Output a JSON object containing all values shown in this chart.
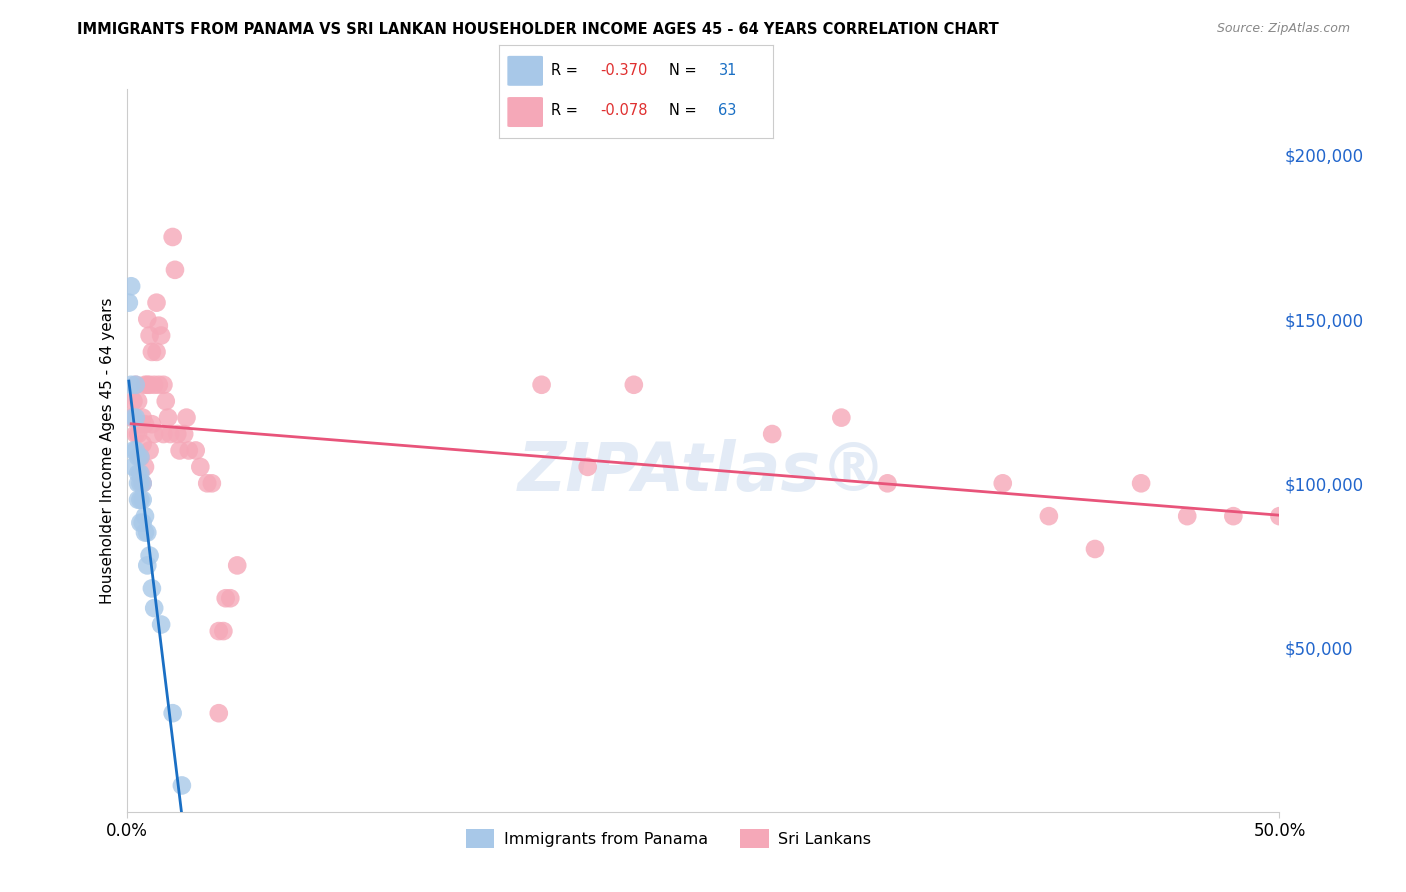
{
  "title": "IMMIGRANTS FROM PANAMA VS SRI LANKAN HOUSEHOLDER INCOME AGES 45 - 64 YEARS CORRELATION CHART",
  "source": "Source: ZipAtlas.com",
  "ylabel": "Householder Income Ages 45 - 64 years",
  "ylabel_right_ticks": [
    "$200,000",
    "$150,000",
    "$100,000",
    "$50,000"
  ],
  "ylabel_right_values": [
    200000,
    150000,
    100000,
    50000
  ],
  "xlim": [
    0.0,
    0.5
  ],
  "ylim": [
    0,
    220000
  ],
  "legend1_r": "-0.370",
  "legend1_n": "31",
  "legend2_r": "-0.078",
  "legend2_n": "63",
  "panama_color": "#a8c8e8",
  "srilanka_color": "#f5a8b8",
  "panama_line_color": "#1a6fc4",
  "srilanka_line_color": "#e8547a",
  "grid_color": "#d0d0d0",
  "background_color": "#ffffff",
  "panama_x": [
    0.001,
    0.002,
    0.002,
    0.003,
    0.003,
    0.003,
    0.004,
    0.004,
    0.004,
    0.005,
    0.005,
    0.005,
    0.005,
    0.006,
    0.006,
    0.006,
    0.006,
    0.006,
    0.007,
    0.007,
    0.007,
    0.008,
    0.008,
    0.009,
    0.009,
    0.01,
    0.011,
    0.012,
    0.015,
    0.02,
    0.024
  ],
  "panama_y": [
    155000,
    160000,
    130000,
    120000,
    110000,
    105000,
    130000,
    120000,
    110000,
    108000,
    103000,
    100000,
    95000,
    108000,
    103000,
    100000,
    95000,
    88000,
    100000,
    95000,
    88000,
    90000,
    85000,
    85000,
    75000,
    78000,
    68000,
    62000,
    57000,
    30000,
    8000
  ],
  "srilanka_x": [
    0.002,
    0.003,
    0.004,
    0.004,
    0.005,
    0.005,
    0.006,
    0.006,
    0.007,
    0.007,
    0.007,
    0.008,
    0.008,
    0.008,
    0.009,
    0.009,
    0.01,
    0.01,
    0.01,
    0.011,
    0.011,
    0.012,
    0.012,
    0.013,
    0.013,
    0.014,
    0.014,
    0.015,
    0.016,
    0.016,
    0.017,
    0.018,
    0.019,
    0.02,
    0.021,
    0.022,
    0.023,
    0.025,
    0.026,
    0.027,
    0.03,
    0.032,
    0.035,
    0.037,
    0.04,
    0.04,
    0.042,
    0.043,
    0.045,
    0.048,
    0.18,
    0.2,
    0.22,
    0.28,
    0.31,
    0.33,
    0.38,
    0.4,
    0.42,
    0.44,
    0.46,
    0.48,
    0.5
  ],
  "srilanka_y": [
    120000,
    125000,
    130000,
    115000,
    125000,
    115000,
    118000,
    108000,
    120000,
    112000,
    100000,
    130000,
    118000,
    105000,
    150000,
    130000,
    145000,
    130000,
    110000,
    140000,
    118000,
    130000,
    115000,
    155000,
    140000,
    148000,
    130000,
    145000,
    130000,
    115000,
    125000,
    120000,
    115000,
    175000,
    165000,
    115000,
    110000,
    115000,
    120000,
    110000,
    110000,
    105000,
    100000,
    100000,
    55000,
    30000,
    55000,
    65000,
    65000,
    75000,
    130000,
    105000,
    130000,
    115000,
    120000,
    100000,
    100000,
    90000,
    80000,
    100000,
    90000,
    90000,
    90000
  ]
}
